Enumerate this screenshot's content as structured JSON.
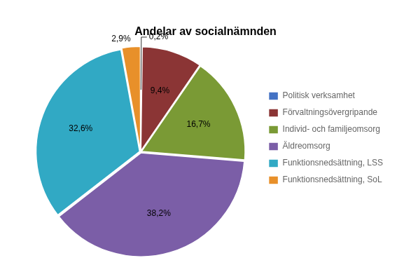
{
  "chart_data": {
    "type": "pie",
    "title": "Andelar av socialnämnden",
    "categories": [
      "Politisk verksamhet",
      "Förvaltningsövergripande",
      "Individ- och familjeomsorg",
      "Äldreomsorg",
      "Funktionsnedsättning, LSS",
      "Funktionsnedsättning, SoL"
    ],
    "values": [
      0.2,
      9.4,
      16.7,
      38.2,
      32.6,
      2.9
    ],
    "value_labels": [
      "0,2%",
      "9,4%",
      "16,7%",
      "38,2%",
      "32,6%",
      "2,9%"
    ],
    "colors": [
      "#4472C4",
      "#8B3535",
      "#7A9A35",
      "#7B5EA7",
      "#31A9C4",
      "#E8902A"
    ],
    "data_labels": true,
    "legend": "right"
  }
}
